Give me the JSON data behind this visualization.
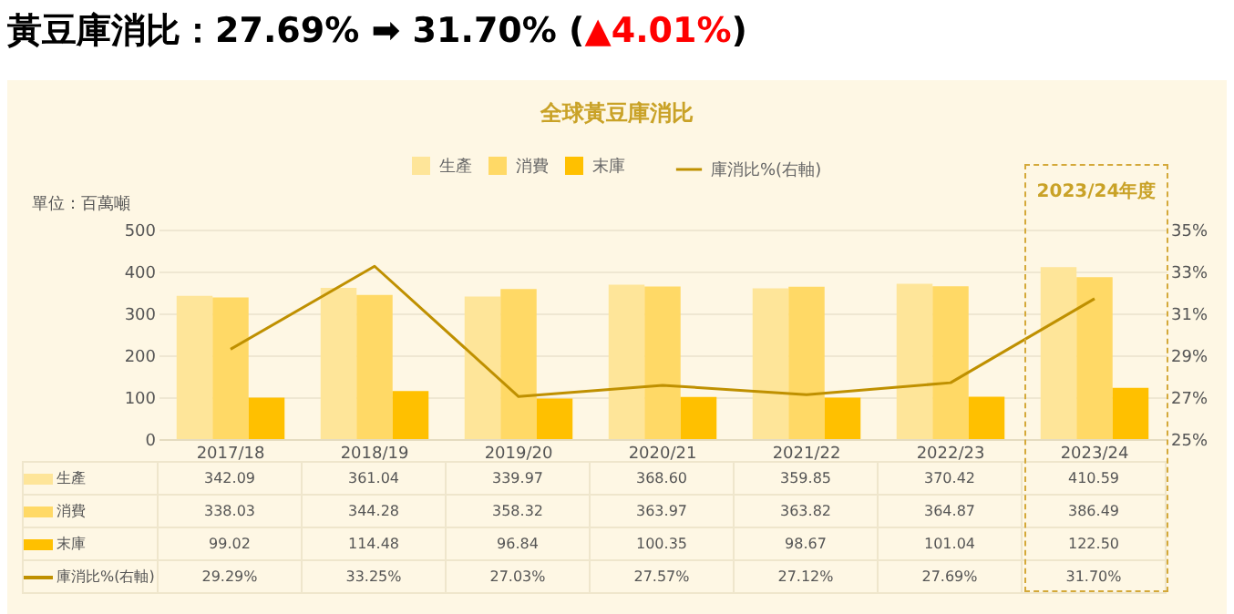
{
  "chart_data": {
    "type": "bar",
    "title": "黃豆庫消比：27.69% ➡ 31.70% (▲4.01%)",
    "subtitle": "全球黃豆庫消比",
    "ylabel": "單位：百萬噸",
    "categories": [
      "2017/18",
      "2018/19",
      "2019/20",
      "2020/21",
      "2021/22",
      "2022/23",
      "2023/24"
    ],
    "series": [
      {
        "name": "生產",
        "color": "#fee599",
        "values": [
          342.09,
          361.04,
          339.97,
          368.6,
          359.85,
          370.42,
          410.59
        ],
        "value_labels": [
          "342.09",
          "361.04",
          "339.97",
          "368.60",
          "359.85",
          "370.42",
          "410.59"
        ]
      },
      {
        "name": "消費",
        "color": "#ffd966",
        "values": [
          338.03,
          344.28,
          358.32,
          363.97,
          363.82,
          364.87,
          386.49
        ],
        "value_labels": [
          "338.03",
          "344.28",
          "358.32",
          "363.97",
          "363.82",
          "364.87",
          "386.49"
        ]
      },
      {
        "name": "末庫",
        "color": "#ffc000",
        "values": [
          99.02,
          114.48,
          96.84,
          100.35,
          98.67,
          101.04,
          122.5
        ],
        "value_labels": [
          "99.02",
          "114.48",
          "96.84",
          "100.35",
          "98.67",
          "101.04",
          "122.50"
        ]
      },
      {
        "name": "庫消比%(右軸)",
        "type": "line",
        "axis": "y2",
        "color": "#bf9000",
        "values": [
          29.29,
          33.25,
          27.03,
          27.57,
          27.12,
          27.69,
          31.7
        ],
        "value_labels": [
          "29.29%",
          "33.25%",
          "27.03%",
          "27.57%",
          "27.12%",
          "27.69%",
          "31.70%"
        ]
      }
    ],
    "ylim": [
      0,
      500
    ],
    "yticks": [
      0,
      100,
      200,
      300,
      400,
      500
    ],
    "y2lim": [
      25,
      35
    ],
    "y2ticks": [
      {
        "value": 25,
        "label": "25%"
      },
      {
        "value": 27,
        "label": "27%"
      },
      {
        "value": 29,
        "label": "29%"
      },
      {
        "value": 31,
        "label": "31%"
      },
      {
        "value": 33,
        "label": "33%"
      },
      {
        "value": 35,
        "label": "35%"
      }
    ],
    "annotations": [
      "2023/24年度"
    ],
    "grid": "y",
    "legend": "top",
    "marker": "none",
    "line_style": "solid"
  }
}
